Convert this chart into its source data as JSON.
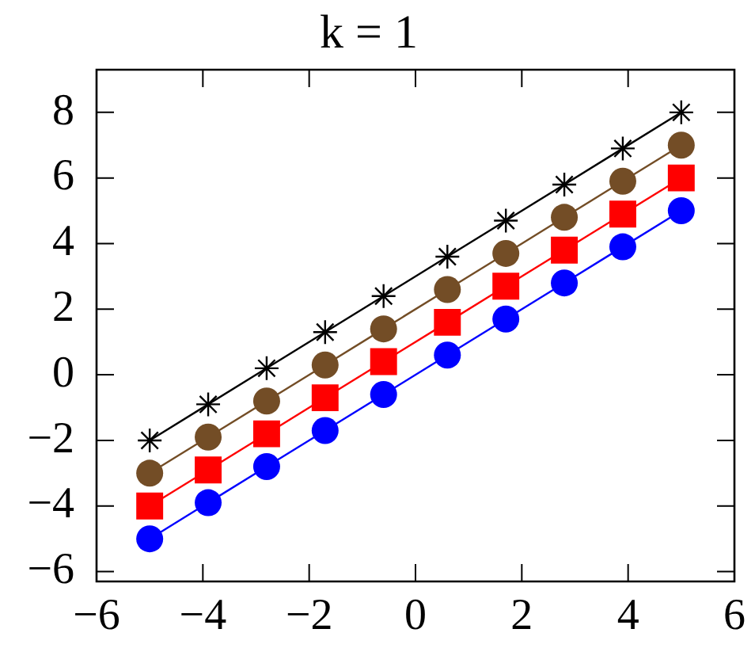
{
  "chart_data": {
    "type": "line",
    "title": "k = 1",
    "x": [
      -5,
      -3.9,
      -2.8,
      -1.7,
      -0.6,
      0.6,
      1.7,
      2.8,
      3.9,
      5
    ],
    "series": [
      {
        "color": "#0000ff",
        "marker": "circle",
        "values": [
          -5,
          -3.9,
          -2.8,
          -1.7,
          -0.6,
          0.6,
          1.7,
          2.8,
          3.9,
          5
        ]
      },
      {
        "color": "#ff0000",
        "marker": "square",
        "values": [
          -4,
          -2.9,
          -1.8,
          -0.7,
          0.4,
          1.6,
          2.7,
          3.8,
          4.9,
          6
        ]
      },
      {
        "color": "#734d26",
        "marker": "circle",
        "values": [
          -3,
          -1.9,
          -0.8,
          0.3,
          1.4,
          2.6,
          3.7,
          4.8,
          5.9,
          7
        ]
      },
      {
        "color": "#000000",
        "marker": "cross",
        "values": [
          -2,
          -0.9,
          0.2,
          1.3,
          2.4,
          3.6,
          4.7,
          5.8,
          6.9,
          8
        ]
      }
    ],
    "xlim": [
      -6,
      6
    ],
    "xticks": [
      -6,
      -4,
      -2,
      0,
      2,
      4,
      6
    ],
    "ylim": [
      -6.3,
      9.3
    ],
    "yticks": [
      -6,
      -4,
      -2,
      0,
      2,
      4,
      6,
      8
    ],
    "grid": false,
    "legend": false,
    "line_style": "solid"
  }
}
